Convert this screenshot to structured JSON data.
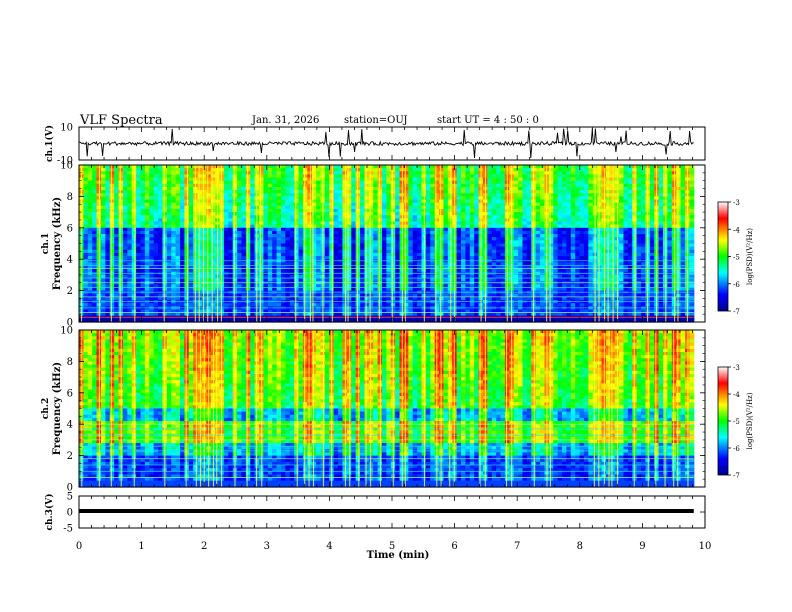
{
  "header": {
    "title": "VLF Spectra",
    "date": "Jan. 31, 2026",
    "station": "station=OUJ",
    "start_ut": "start  UT =  4 : 50 : 0"
  },
  "colors": {
    "background": "#ffffff",
    "axis": "#000000",
    "spectrogram_low": "#00008f",
    "spectrogram_high": "#ff0000"
  },
  "chart_data": [
    {
      "type": "line",
      "name": "ch1-waveform",
      "ylabel": "ch.1(V)",
      "ylim": [
        -10,
        10
      ],
      "yticks": [
        10,
        -10
      ],
      "xlim": [
        0,
        10
      ],
      "baseline": 0,
      "description_values": "noisy waveform around 0 V with spikes up to about +10 V"
    },
    {
      "type": "heatmap",
      "name": "ch1-spectrogram",
      "ylabel_top": "ch.1",
      "ylabel": "Frequency (kHz)",
      "ylim": [
        0,
        10
      ],
      "yticks": [
        0,
        2,
        4,
        6,
        8,
        10
      ],
      "xlim": [
        0,
        10
      ],
      "colorbar": {
        "label": "log(PSD)(V²/Hz)",
        "range": [
          -7,
          -3
        ],
        "ticks": [
          -3,
          -4,
          -5,
          -6,
          -7
        ]
      }
    },
    {
      "type": "heatmap",
      "name": "ch2-spectrogram",
      "ylabel_top": "ch.2",
      "ylabel": "Frequency (kHz)",
      "ylim": [
        0,
        10
      ],
      "yticks": [
        0,
        2,
        4,
        6,
        8,
        10
      ],
      "xlim": [
        0,
        10
      ],
      "colorbar": {
        "label": "log(PSD)(V²/Hz)",
        "range": [
          -7,
          -3
        ],
        "ticks": [
          -3,
          -4,
          -5,
          -6,
          -7
        ]
      }
    },
    {
      "type": "line",
      "name": "ch3-waveform",
      "ylabel": "ch.3(V)",
      "ylim": [
        -5,
        5
      ],
      "yticks": [
        5,
        0,
        -5
      ],
      "xlim": [
        0,
        10
      ],
      "baseline": 0
    }
  ],
  "xaxis": {
    "label": "Time (min)",
    "ticks": [
      "0",
      "1",
      "2",
      "3",
      "4",
      "5",
      "6",
      "7",
      "8",
      "9",
      "10"
    ],
    "range": [
      0,
      10
    ],
    "data_end": 9.82
  }
}
